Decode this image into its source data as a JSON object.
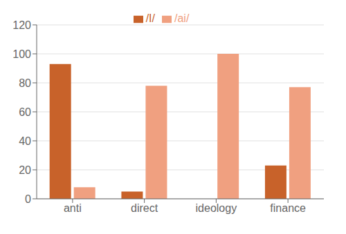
{
  "chart_data": {
    "type": "bar",
    "categories": [
      "anti",
      "direct",
      "ideology",
      "finance"
    ],
    "series": [
      {
        "name": "/I/",
        "color": "#c8622a",
        "values": [
          93,
          5,
          0,
          23
        ]
      },
      {
        "name": "/ai/",
        "color": "#f0a080",
        "values": [
          8,
          78,
          100,
          77
        ]
      }
    ],
    "ylim": [
      0,
      120
    ],
    "yticks": [
      0,
      20,
      40,
      60,
      80,
      100,
      120
    ],
    "grid": true,
    "legend": "top"
  }
}
